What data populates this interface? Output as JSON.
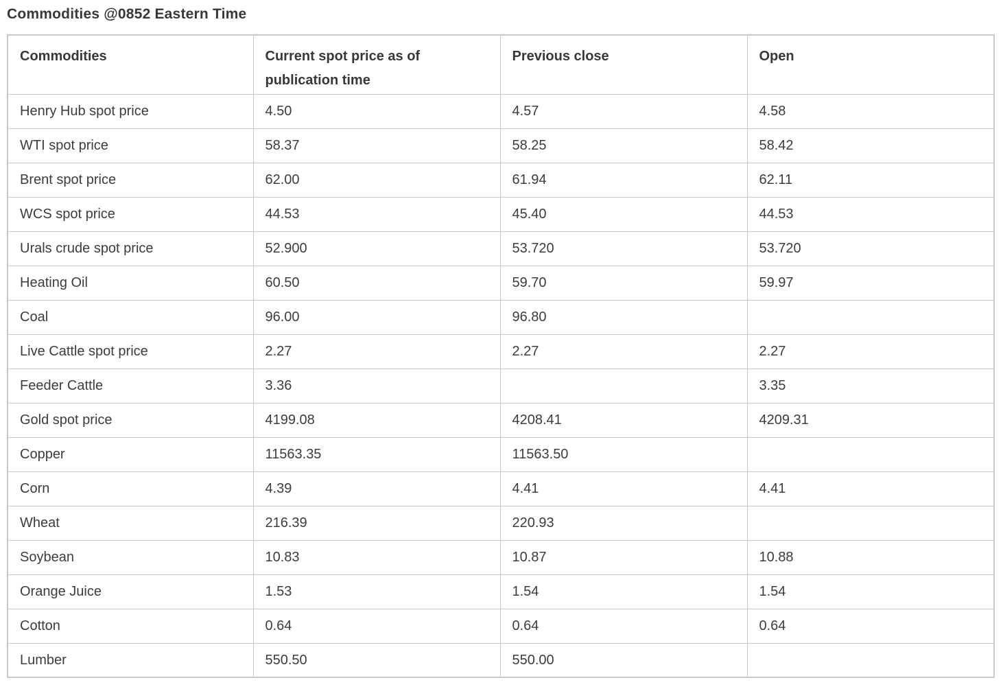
{
  "chart_data": {
    "type": "table",
    "title": "Commodities @0852 Eastern Time",
    "columns": [
      "Commodities",
      "Current spot price as of publication time",
      "Previous close",
      "Open"
    ],
    "rows": [
      {
        "name": "Henry Hub spot price",
        "current": "4.50",
        "prev_close": "4.57",
        "open": "4.58"
      },
      {
        "name": "WTI spot price",
        "current": "58.37",
        "prev_close": "58.25",
        "open": "58.42"
      },
      {
        "name": "Brent spot price",
        "current": "62.00",
        "prev_close": "61.94",
        "open": "62.11"
      },
      {
        "name": "WCS spot price",
        "current": "44.53",
        "prev_close": "45.40",
        "open": "44.53"
      },
      {
        "name": "Urals crude spot price",
        "current": "52.900",
        "prev_close": "53.720",
        "open": "53.720"
      },
      {
        "name": "Heating Oil",
        "current": "60.50",
        "prev_close": "59.70",
        "open": "59.97"
      },
      {
        "name": "Coal",
        "current": "96.00",
        "prev_close": "96.80",
        "open": ""
      },
      {
        "name": "Live Cattle spot price",
        "current": "2.27",
        "prev_close": "2.27",
        "open": "2.27"
      },
      {
        "name": "Feeder Cattle",
        "current": "3.36",
        "prev_close": "",
        "open": "3.35"
      },
      {
        "name": "Gold spot price",
        "current": "4199.08",
        "prev_close": "4208.41",
        "open": "4209.31"
      },
      {
        "name": "Copper",
        "current": "11563.35",
        "prev_close": "11563.50",
        "open": ""
      },
      {
        "name": "Corn",
        "current": "4.39",
        "prev_close": "4.41",
        "open": "4.41"
      },
      {
        "name": "Wheat",
        "current": "216.39",
        "prev_close": "220.93",
        "open": ""
      },
      {
        "name": "Soybean",
        "current": "10.83",
        "prev_close": "10.87",
        "open": "10.88"
      },
      {
        "name": "Orange Juice",
        "current": "1.53",
        "prev_close": "1.54",
        "open": "1.54"
      },
      {
        "name": "Cotton",
        "current": "0.64",
        "prev_close": "0.64",
        "open": "0.64"
      },
      {
        "name": "Lumber",
        "current": "550.50",
        "prev_close": "550.00",
        "open": ""
      }
    ]
  },
  "colors": {
    "text": "#3c3c3c",
    "title_text": "#383838",
    "border": "#c9c9c9",
    "background": "#ffffff"
  }
}
